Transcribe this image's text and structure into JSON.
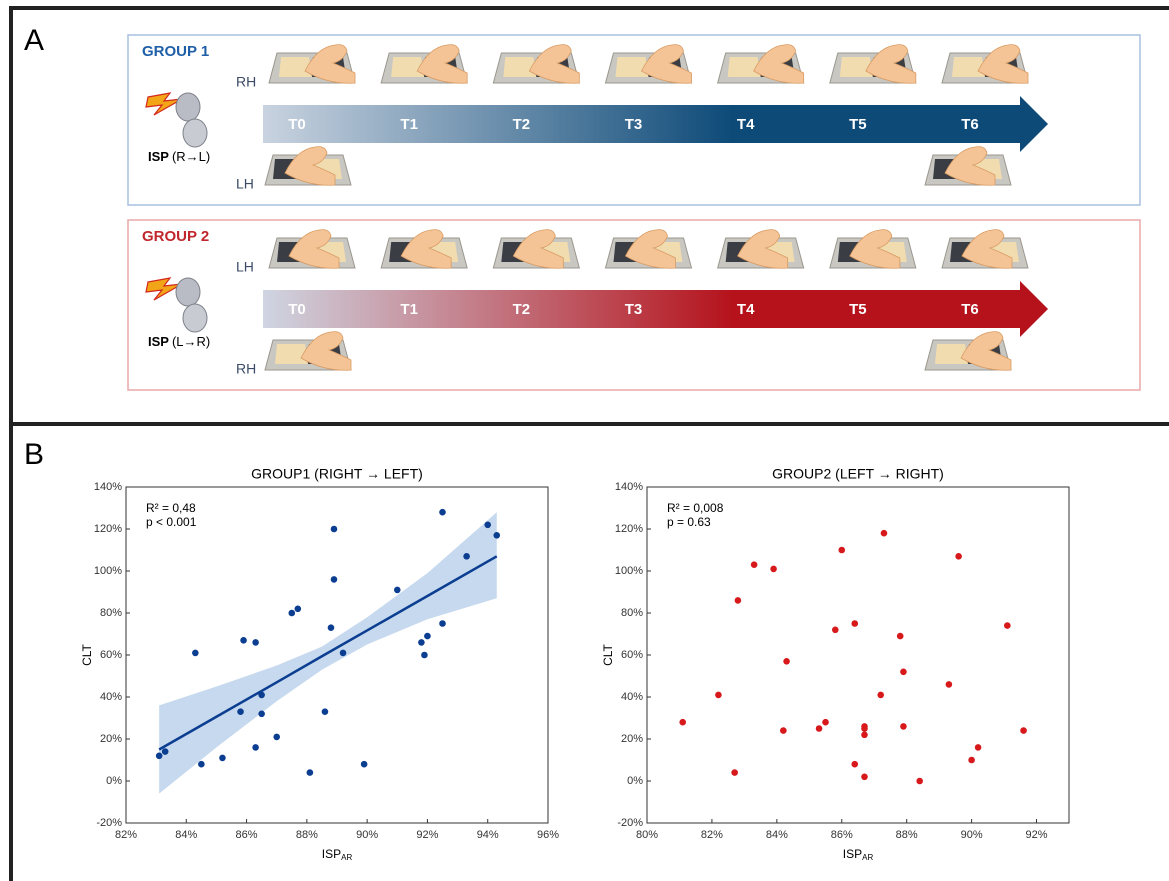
{
  "panel_a": {
    "label": "A",
    "timepoints": [
      "T0",
      "T1",
      "T2",
      "T3",
      "T4",
      "T5",
      "T6"
    ],
    "groups": [
      {
        "title": "GROUP 1",
        "top_hand": "RH",
        "bottom_hand": "LH",
        "isp": "ISP",
        "isp_dir": "(R→L)",
        "color": "#1f5fa8",
        "arrow_from": "#c9d3e0",
        "arrow_to": "#0d4a78",
        "border": "#a9bfe0"
      },
      {
        "title": "GROUP 2",
        "top_hand": "LH",
        "bottom_hand": "RH",
        "isp": "ISP",
        "isp_dir": "(L→R)",
        "color": "#c0282d",
        "arrow_from": "#cfd5e2",
        "arrow_to": "#b5121b",
        "border": "#e8a9a9"
      }
    ]
  },
  "panel_b_label": "B",
  "chart_data": [
    {
      "type": "scatter",
      "title": "GROUP1 (RIGHT → LEFT)",
      "xlabel": "ISP",
      "xlabel_sub": "AR",
      "ylabel": "CLT",
      "annotations": [
        "R² = 0,48",
        "p < 0.001"
      ],
      "color": "#0b3d91",
      "xlim": [
        82,
        96
      ],
      "ylim": [
        -20,
        140
      ],
      "xticks": [
        {
          "value": 82,
          "label": "82%"
        },
        {
          "value": 84,
          "label": "84%"
        },
        {
          "value": 86,
          "label": "86%"
        },
        {
          "value": 88,
          "label": "88%"
        },
        {
          "value": 90,
          "label": "90%"
        },
        {
          "value": 92,
          "label": "92%"
        },
        {
          "value": 94,
          "label": "94%"
        },
        {
          "value": 96,
          "label": "96%"
        }
      ],
      "yticks": [
        {
          "value": -20,
          "label": "-20%"
        },
        {
          "value": 0,
          "label": "0%"
        },
        {
          "value": 20,
          "label": "20%"
        },
        {
          "value": 40,
          "label": "40%"
        },
        {
          "value": 60,
          "label": "60%"
        },
        {
          "value": 80,
          "label": "80%"
        },
        {
          "value": 100,
          "label": "100%"
        },
        {
          "value": 120,
          "label": "120%"
        },
        {
          "value": 140,
          "label": "140%"
        }
      ],
      "x": [
        83.1,
        83.3,
        84.3,
        84.5,
        85.2,
        85.8,
        85.9,
        86.3,
        86.3,
        86.5,
        86.5,
        87.0,
        87.5,
        87.7,
        88.1,
        88.6,
        88.8,
        88.9,
        88.9,
        89.2,
        89.9,
        91.0,
        91.8,
        91.9,
        92.0,
        92.5,
        92.5,
        93.3,
        94.0,
        94.3
      ],
      "values": [
        12,
        14,
        61,
        8,
        11,
        33,
        67,
        66,
        16,
        32,
        41,
        21,
        80,
        82,
        4,
        33,
        73,
        96,
        120,
        61,
        8,
        91,
        66,
        60,
        69,
        75,
        128,
        107,
        122,
        117
      ],
      "fit": {
        "color": "#0b3d91",
        "band_color": "#c6d9ee",
        "x": [
          83.1,
          85,
          87,
          88.5,
          90,
          92,
          94.3
        ],
        "values": [
          15,
          30.6,
          47,
          59.4,
          71.7,
          88.1,
          107
        ],
        "ci_upper": [
          36,
          45,
          55,
          64,
          78,
          99,
          128
        ],
        "ci_lower": [
          -6,
          16,
          38,
          53,
          65,
          77,
          87
        ]
      }
    },
    {
      "type": "scatter",
      "title": "GROUP2 (LEFT → RIGHT)",
      "xlabel": "ISP",
      "xlabel_sub": "AR",
      "ylabel": "CLT",
      "annotations": [
        "R² = 0,008",
        "p = 0.63"
      ],
      "color": "#d7191c",
      "xlim": [
        80,
        93
      ],
      "ylim": [
        -20,
        140
      ],
      "xticks": [
        {
          "value": 80,
          "label": "80%"
        },
        {
          "value": 82,
          "label": "82%"
        },
        {
          "value": 84,
          "label": "84%"
        },
        {
          "value": 86,
          "label": "86%"
        },
        {
          "value": 88,
          "label": "88%"
        },
        {
          "value": 90,
          "label": "90%"
        },
        {
          "value": 92,
          "label": "92%"
        }
      ],
      "yticks": [
        {
          "value": -20,
          "label": "-20%"
        },
        {
          "value": 0,
          "label": "0%"
        },
        {
          "value": 20,
          "label": "20%"
        },
        {
          "value": 40,
          "label": "40%"
        },
        {
          "value": 60,
          "label": "60%"
        },
        {
          "value": 80,
          "label": "80%"
        },
        {
          "value": 100,
          "label": "100%"
        },
        {
          "value": 120,
          "label": "120%"
        },
        {
          "value": 140,
          "label": "140%"
        }
      ],
      "x": [
        81.1,
        82.2,
        82.7,
        82.8,
        83.3,
        83.9,
        84.2,
        84.3,
        85.3,
        85.5,
        85.8,
        86.0,
        86.4,
        86.4,
        86.7,
        86.7,
        86.7,
        86.7,
        87.2,
        87.3,
        87.8,
        87.9,
        87.9,
        88.4,
        89.3,
        89.6,
        90.0,
        90.2,
        91.1,
        91.6
      ],
      "values": [
        28,
        41,
        4,
        86,
        103,
        101,
        24,
        57,
        25,
        28,
        72,
        110,
        75,
        8,
        2,
        25,
        26,
        22,
        41,
        118,
        69,
        52,
        26,
        0,
        46,
        107,
        10,
        16,
        74,
        24
      ]
    }
  ]
}
